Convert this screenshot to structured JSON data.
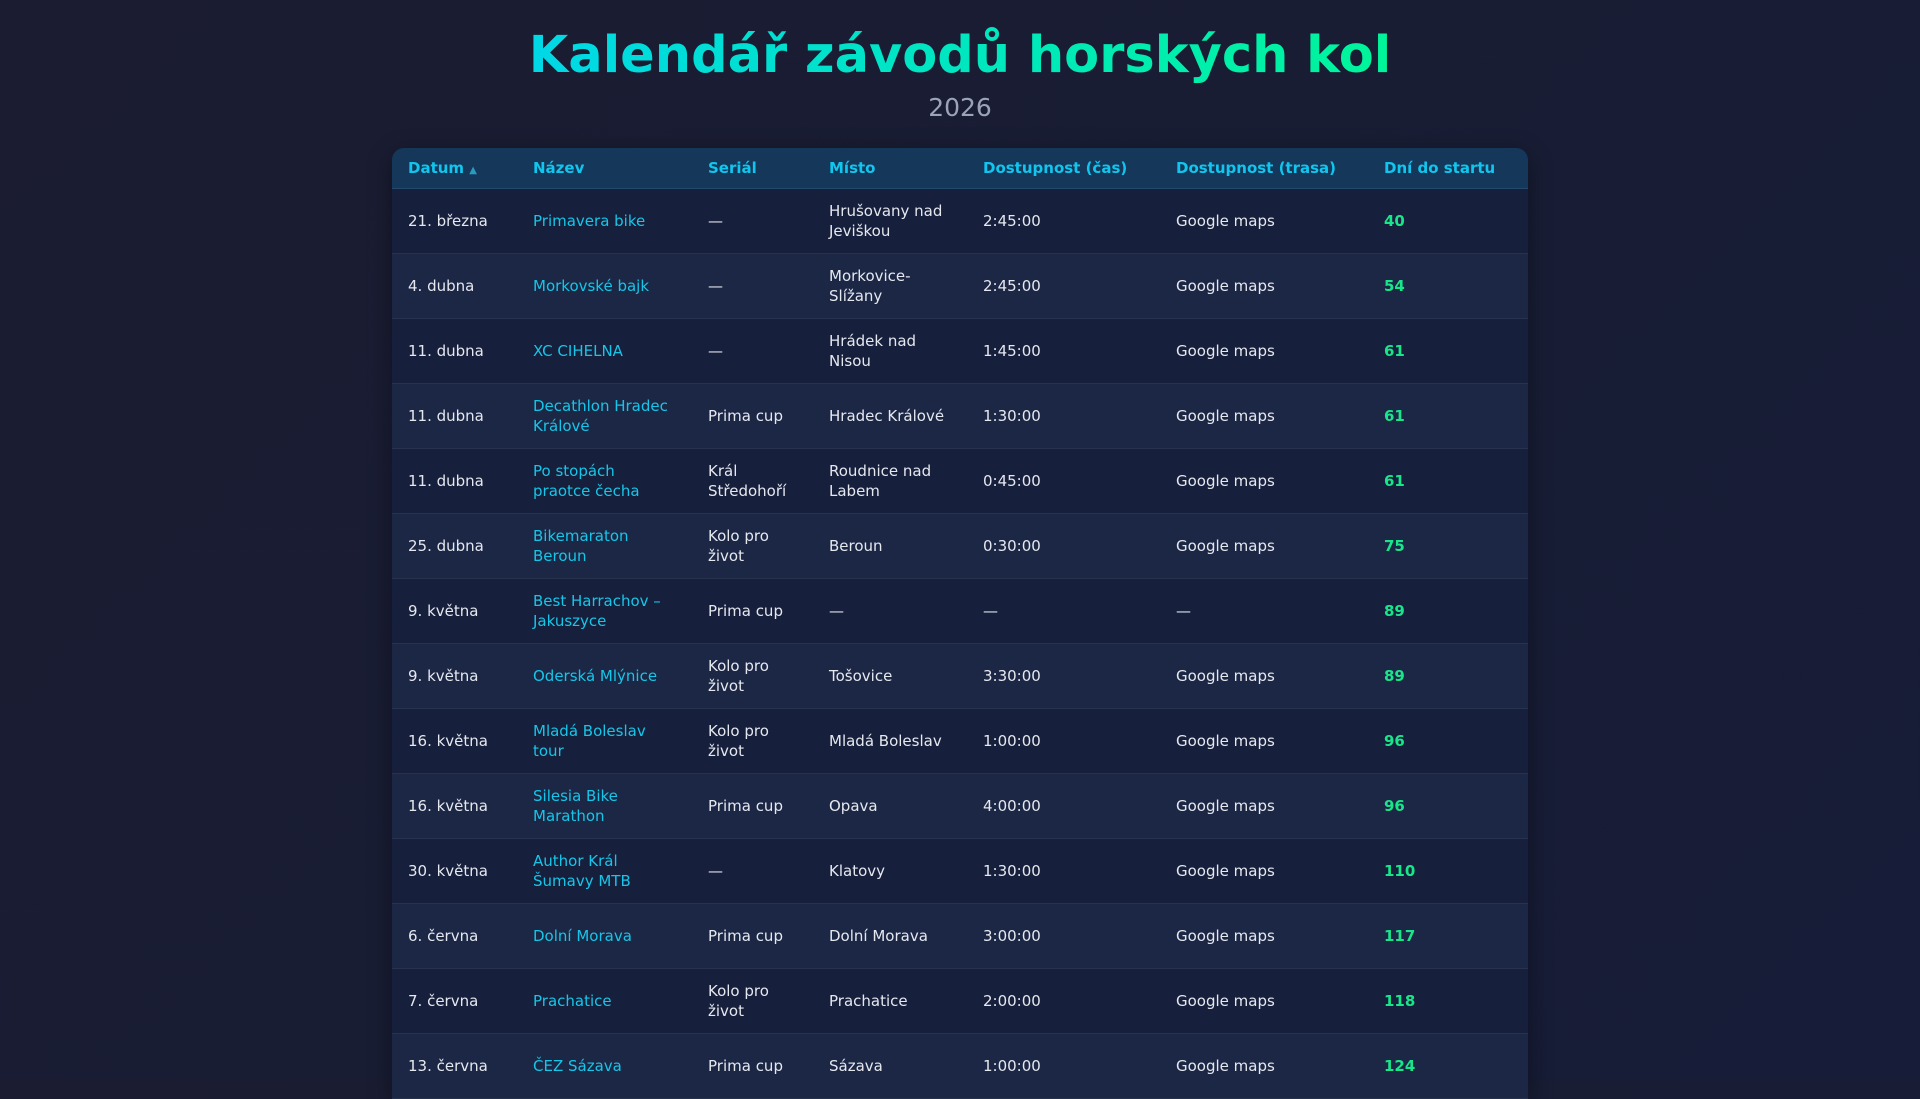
{
  "header": {
    "title": "Kalendář závodů horských kol",
    "year": "2026"
  },
  "colors": {
    "accent_start": "#00d8e6",
    "accent_end": "#00f59a",
    "days": "#19e68a",
    "link": "#16c6e8"
  },
  "table": {
    "columns": [
      "Datum",
      "Název",
      "Seriál",
      "Místo",
      "Dostupnost (čas)",
      "Dostupnost (trasa)",
      "Dní do startu"
    ],
    "sort": {
      "column": "Datum",
      "direction": "ascending",
      "icon": "sort-up-icon",
      "glyph": "▲"
    },
    "rows": [
      {
        "date": "21. března",
        "name": "Primavera bike",
        "series": "—",
        "place": "Hrušovany nad Jeviškou",
        "time": "2:45:00",
        "route": "Google maps",
        "days": "40"
      },
      {
        "date": "4. dubna",
        "name": "Morkovské bajk",
        "series": "—",
        "place": "Morkovice-Slížany",
        "time": "2:45:00",
        "route": "Google maps",
        "days": "54"
      },
      {
        "date": "11. dubna",
        "name": "XC CIHELNA",
        "series": "—",
        "place": "Hrádek nad Nisou",
        "time": "1:45:00",
        "route": "Google maps",
        "days": "61"
      },
      {
        "date": "11. dubna",
        "name": "Decathlon Hradec Králové",
        "series": "Prima cup",
        "place": "Hradec Králové",
        "time": "1:30:00",
        "route": "Google maps",
        "days": "61"
      },
      {
        "date": "11. dubna",
        "name": "Po stopách praotce čecha",
        "series": "Král Středohoří",
        "place": "Roudnice nad Labem",
        "time": "0:45:00",
        "route": "Google maps",
        "days": "61"
      },
      {
        "date": "25. dubna",
        "name": "Bikemaraton Beroun",
        "series": "Kolo pro život",
        "place": "Beroun",
        "time": "0:30:00",
        "route": "Google maps",
        "days": "75"
      },
      {
        "date": "9. května",
        "name": "Best Harrachov – Jakuszyce",
        "series": "Prima cup",
        "place": "—",
        "time": "—",
        "route": "—",
        "days": "89"
      },
      {
        "date": "9. května",
        "name": "Oderská Mlýnice",
        "series": "Kolo pro život",
        "place": "Tošovice",
        "time": "3:30:00",
        "route": "Google maps",
        "days": "89"
      },
      {
        "date": "16. května",
        "name": "Mladá Boleslav tour",
        "series": "Kolo pro život",
        "place": "Mladá Boleslav",
        "time": "1:00:00",
        "route": "Google maps",
        "days": "96"
      },
      {
        "date": "16. května",
        "name": "Silesia Bike Marathon",
        "series": "Prima cup",
        "place": "Opava",
        "time": "4:00:00",
        "route": "Google maps",
        "days": "96"
      },
      {
        "date": "30. května",
        "name": "Author Král Šumavy MTB",
        "series": "—",
        "place": "Klatovy",
        "time": "1:30:00",
        "route": "Google maps",
        "days": "110"
      },
      {
        "date": "6. června",
        "name": "Dolní Morava",
        "series": "Prima cup",
        "place": "Dolní Morava",
        "time": "3:00:00",
        "route": "Google maps",
        "days": "117"
      },
      {
        "date": "7. června",
        "name": "Prachatice",
        "series": "Kolo pro život",
        "place": "Prachatice",
        "time": "2:00:00",
        "route": "Google maps",
        "days": "118"
      },
      {
        "date": "13. června",
        "name": "ČEZ Sázava",
        "series": "Prima cup",
        "place": "Sázava",
        "time": "1:00:00",
        "route": "Google maps",
        "days": "124"
      }
    ]
  }
}
